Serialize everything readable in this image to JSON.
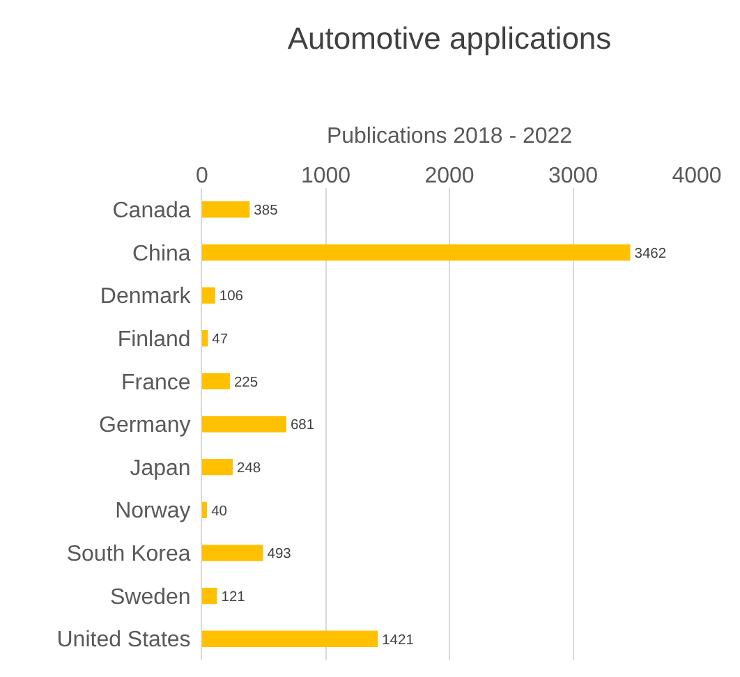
{
  "chart_data": {
    "type": "bar",
    "orientation": "horizontal",
    "title": "Automotive applications",
    "xlabel": "Publications 2018 - 2022",
    "categories": [
      "Canada",
      "China",
      "Denmark",
      "Finland",
      "France",
      "Germany",
      "Japan",
      "Norway",
      "South Korea",
      "Sweden",
      "United States"
    ],
    "values": [
      385,
      3462,
      106,
      47,
      225,
      681,
      248,
      40,
      493,
      121,
      1421
    ],
    "color": "#ffc000",
    "xlim": [
      0,
      4000
    ],
    "xticks": [
      0,
      1000,
      2000,
      3000,
      4000
    ],
    "grid": "x",
    "data_labels": true
  }
}
